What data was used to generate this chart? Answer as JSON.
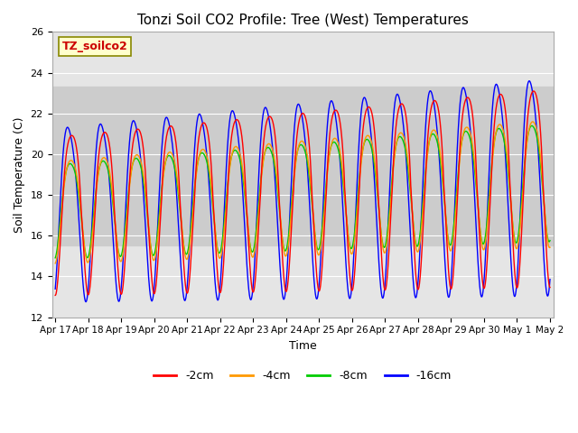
{
  "title": "Tonzi Soil CO2 Profile: Tree (West) Temperatures",
  "xlabel": "Time",
  "ylabel": "Soil Temperature (C)",
  "ylim": [
    12,
    26
  ],
  "background_color": "#ffffff",
  "plot_bg_color": "#e5e5e5",
  "shaded_band": [
    15.5,
    23.3
  ],
  "shaded_color": "#cccccc",
  "legend_label": "TZ_soilco2",
  "legend_bg": "#ffffcc",
  "legend_border": "#cc9900",
  "legend_text_color": "#cc0000",
  "xtick_labels": [
    "Apr 17",
    "Apr 18",
    "Apr 19",
    "Apr 20",
    "Apr 21",
    "Apr 22",
    "Apr 23",
    "Apr 24",
    "Apr 25",
    "Apr 26",
    "Apr 27",
    "Apr 28",
    "Apr 29",
    "Apr 30",
    "May 1",
    "May 2"
  ],
  "ytick_labels": [
    12,
    14,
    16,
    18,
    20,
    22,
    24,
    26
  ],
  "line_labels": [
    "-2cm",
    "-4cm",
    "-8cm",
    "-16cm"
  ],
  "line_colors": [
    "#ff0000",
    "#ff9900",
    "#00cc00",
    "#0000ff"
  ]
}
